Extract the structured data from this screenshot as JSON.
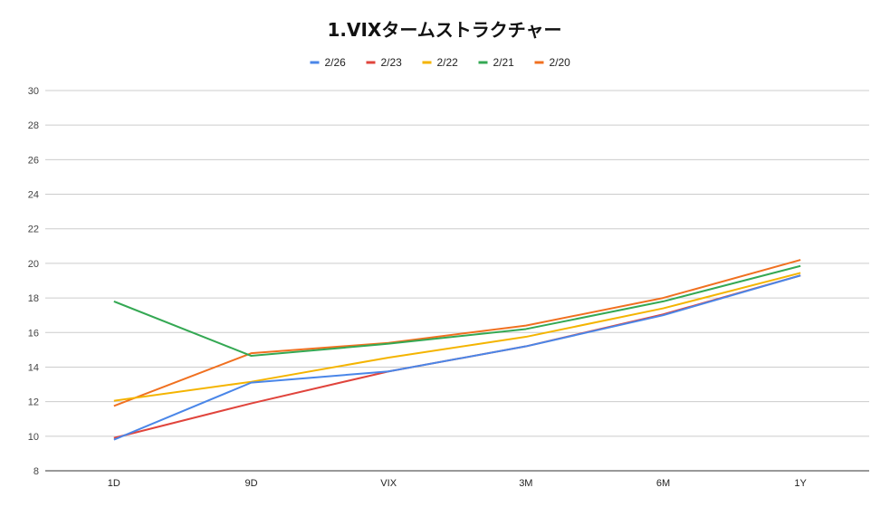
{
  "chart_data": {
    "type": "line",
    "title": "1.VIXタームストラクチャー",
    "categories": [
      "1D",
      "9D",
      "VIX",
      "3M",
      "6M",
      "1Y"
    ],
    "ylim": [
      8,
      30
    ],
    "yticks": [
      8,
      10,
      12,
      14,
      16,
      18,
      20,
      22,
      24,
      26,
      28,
      30
    ],
    "grid": true,
    "legend_position": "top",
    "series": [
      {
        "name": "2/26",
        "color": "#4a86e8",
        "values": [
          9.8,
          13.1,
          13.75,
          15.2,
          17.0,
          19.3
        ]
      },
      {
        "name": "2/23",
        "color": "#e0443c",
        "values": [
          9.9,
          11.9,
          13.75,
          15.2,
          17.05,
          19.3
        ]
      },
      {
        "name": "2/22",
        "color": "#f4b400",
        "values": [
          12.05,
          13.15,
          14.55,
          15.75,
          17.4,
          19.45
        ]
      },
      {
        "name": "2/21",
        "color": "#34a853",
        "values": [
          17.8,
          14.65,
          15.35,
          16.2,
          17.8,
          19.85
        ]
      },
      {
        "name": "2/20",
        "color": "#f07020",
        "values": [
          11.75,
          14.8,
          15.4,
          16.4,
          18.0,
          20.2
        ]
      }
    ]
  }
}
